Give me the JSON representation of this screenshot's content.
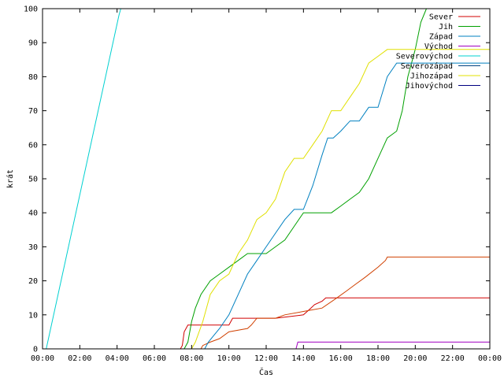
{
  "chart_data": {
    "type": "line",
    "xlabel": "Čas",
    "ylabel": "krát",
    "x_ticks": [
      "00:00",
      "02:00",
      "04:00",
      "06:00",
      "08:00",
      "10:00",
      "12:00",
      "14:00",
      "16:00",
      "18:00",
      "20:00",
      "22:00",
      "00:00"
    ],
    "y_ticks": [
      0,
      10,
      20,
      30,
      40,
      50,
      60,
      70,
      80,
      90,
      100
    ],
    "xlim_hours": [
      0,
      24
    ],
    "ylim": [
      0,
      100
    ],
    "grid": false,
    "legend_position": "top-right",
    "series": [
      {
        "name": "Sever",
        "color": "#d00000",
        "x": [
          0,
          7.4,
          7.5,
          7.6,
          7.8,
          8.0,
          10.0,
          10.2,
          12.5,
          14.0,
          14.2,
          14.4,
          14.6,
          15.0,
          15.2,
          24
        ],
        "y": [
          0,
          0,
          1,
          5,
          7,
          7,
          7,
          9,
          9,
          10,
          11,
          12,
          13,
          14,
          15,
          15
        ]
      },
      {
        "name": "Sever",
        "color": "#d04000",
        "x": [
          0,
          8.5,
          8.6,
          9.0,
          9.5,
          10.0,
          11.0,
          11.2,
          11.5,
          12.5,
          13.0,
          14.0,
          15.0,
          15.8,
          16.3,
          16.8,
          17.3,
          18.0,
          18.4,
          18.5,
          24
        ],
        "y": [
          0,
          0,
          1,
          2,
          3,
          5,
          6,
          7,
          9,
          9,
          10,
          11,
          12,
          15,
          17,
          19,
          21,
          24,
          26,
          27,
          27
        ]
      },
      {
        "name": "Jih",
        "color": "#00a000",
        "x": [
          0,
          7.6,
          7.8,
          8.0,
          8.2,
          8.5,
          9.0,
          9.5,
          10.0,
          10.5,
          11.0,
          11.5,
          12.0,
          12.5,
          13.0,
          13.5,
          14.0,
          14.5,
          15.0,
          15.5,
          16.0,
          16.5,
          17.0,
          17.5,
          18.0,
          18.5,
          19.0,
          19.3,
          19.6,
          20.0,
          20.3,
          20.6
        ],
        "y": [
          0,
          0,
          2,
          8,
          12,
          16,
          20,
          22,
          24,
          26,
          28,
          28,
          28,
          30,
          32,
          36,
          40,
          40,
          40,
          40,
          42,
          44,
          46,
          50,
          56,
          62,
          64,
          70,
          80,
          88,
          96,
          100
        ]
      },
      {
        "name": "Západ",
        "color": "#0080c0",
        "x": [
          0,
          8.7,
          8.9,
          9.2,
          9.5,
          10.0,
          10.5,
          11.0,
          11.5,
          12.0,
          12.5,
          13.0,
          13.5,
          14.0,
          14.5,
          15.0,
          15.3,
          15.6,
          16.0,
          16.5,
          17.0,
          17.5,
          18.0,
          18.5,
          19.0,
          19.5,
          20.0,
          24
        ],
        "y": [
          0,
          0,
          2,
          4,
          6,
          10,
          16,
          22,
          26,
          30,
          34,
          38,
          41,
          41,
          48,
          57,
          62,
          62,
          64,
          67,
          67,
          71,
          71,
          80,
          84,
          84,
          84,
          84
        ]
      },
      {
        "name": "Východ",
        "color": "#a000c0",
        "x": [
          0,
          13.6,
          13.7,
          24
        ],
        "y": [
          0,
          0,
          2,
          2
        ]
      },
      {
        "name": "Severovýchod",
        "color": "#00d0d0",
        "x": [
          0,
          0.2,
          4.1,
          4.2
        ],
        "y": [
          0,
          0,
          98,
          100
        ]
      },
      {
        "name": "Severozápad",
        "color": "#004080",
        "x": [],
        "y": []
      },
      {
        "name": "Jihozápad",
        "color": "#e0e000",
        "x": [
          0,
          8.0,
          8.2,
          8.6,
          9.0,
          9.5,
          10.0,
          10.5,
          11.0,
          11.5,
          12.0,
          12.5,
          13.0,
          13.5,
          14.0,
          14.5,
          15.0,
          15.5,
          16.0,
          16.5,
          17.0,
          17.5,
          18.0,
          18.5,
          19.0,
          24
        ],
        "y": [
          0,
          0,
          2,
          8,
          16,
          20,
          22,
          28,
          32,
          38,
          40,
          44,
          52,
          56,
          56,
          60,
          64,
          70,
          70,
          74,
          78,
          84,
          86,
          88,
          88,
          88
        ]
      },
      {
        "name": "Jihovýchod",
        "color": "#000080",
        "x": [],
        "y": []
      }
    ]
  }
}
